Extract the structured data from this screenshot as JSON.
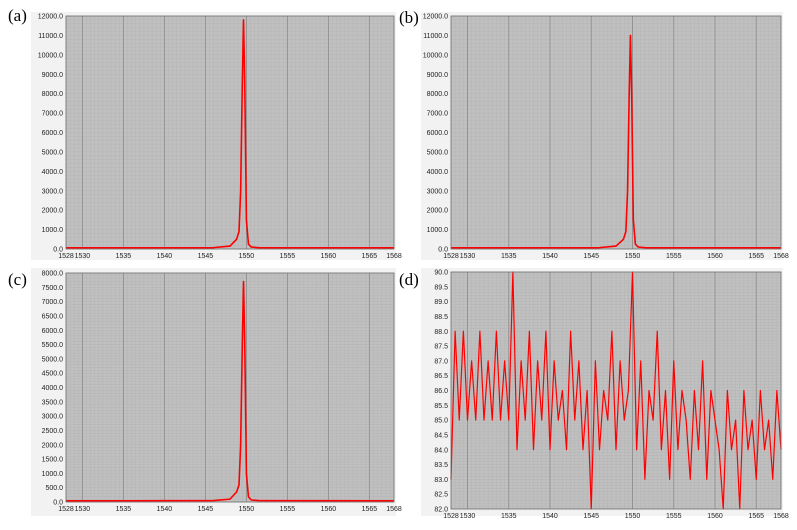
{
  "panels": [
    {
      "label": "(a)"
    },
    {
      "label": "(b)"
    },
    {
      "label": "(c)"
    },
    {
      "label": "(d)"
    }
  ],
  "colors": {
    "plot_background": "#c0c0c0",
    "major_grid": "#8f8f8f",
    "minor_grid": "#b3b3b3",
    "trace": "#ff0000",
    "frame_background": "#f2f2f2"
  },
  "chart_data": [
    {
      "type": "line",
      "title": "",
      "xlabel": "",
      "ylabel": "",
      "xlim": [
        1528,
        1568
      ],
      "ylim": [
        0,
        12000
      ],
      "x_ticks": [
        1528,
        1530,
        1535,
        1540,
        1545,
        1550,
        1555,
        1560,
        1565,
        1568
      ],
      "y_ticks": [
        "0.0",
        "1000.0",
        "2000.0",
        "3000.0",
        "4000.0",
        "5000.0",
        "6000.0",
        "7000.0",
        "8000.0",
        "9000.0",
        "10000.0",
        "11000.0",
        "12000.0"
      ],
      "grid": true,
      "series": [
        {
          "x": [
            1528,
            1546,
            1548,
            1548.8,
            1549.1,
            1549.3,
            1549.5,
            1549.65,
            1549.8,
            1550.0,
            1550.25,
            1550.6,
            1551.5,
            1568
          ],
          "y": [
            60,
            70,
            150,
            500,
            900,
            3000,
            8500,
            11800,
            8500,
            1500,
            250,
            100,
            70,
            60
          ]
        }
      ]
    },
    {
      "type": "line",
      "title": "",
      "xlabel": "",
      "ylabel": "",
      "xlim": [
        1528,
        1568
      ],
      "ylim": [
        0,
        12000
      ],
      "x_ticks": [
        1528,
        1530,
        1535,
        1540,
        1545,
        1550,
        1555,
        1560,
        1565,
        1568
      ],
      "y_ticks": [
        "0.0",
        "1000.0",
        "2000.0",
        "3000.0",
        "4000.0",
        "5000.0",
        "6000.0",
        "7000.0",
        "8000.0",
        "9000.0",
        "10000.0",
        "11000.0",
        "12000.0"
      ],
      "grid": true,
      "series": [
        {
          "x": [
            1528,
            1546,
            1548,
            1548.9,
            1549.2,
            1549.4,
            1549.6,
            1549.75,
            1549.9,
            1550.1,
            1550.35,
            1550.7,
            1551.5,
            1568
          ],
          "y": [
            60,
            70,
            150,
            500,
            900,
            3000,
            8000,
            11000,
            8000,
            1500,
            250,
            100,
            70,
            60
          ]
        }
      ]
    },
    {
      "type": "line",
      "title": "",
      "xlabel": "",
      "ylabel": "",
      "xlim": [
        1528,
        1568
      ],
      "ylim": [
        0,
        8000
      ],
      "x_ticks": [
        1528,
        1530,
        1535,
        1540,
        1545,
        1550,
        1555,
        1560,
        1565,
        1568
      ],
      "y_ticks": [
        "0.0",
        "500.0",
        "1000.0",
        "1500.0",
        "2000.0",
        "2500.0",
        "3000.0",
        "3500.0",
        "4000.0",
        "4500.0",
        "5000.0",
        "5500.0",
        "6000.0",
        "6500.0",
        "7000.0",
        "7500.0",
        "8000.0"
      ],
      "grid": true,
      "series": [
        {
          "x": [
            1528,
            1546,
            1548,
            1548.8,
            1549.1,
            1549.3,
            1549.5,
            1549.65,
            1549.8,
            1550.0,
            1550.25,
            1550.6,
            1551.5,
            1568
          ],
          "y": [
            40,
            50,
            100,
            350,
            600,
            2000,
            5500,
            7700,
            5500,
            1000,
            180,
            70,
            50,
            40
          ]
        }
      ]
    },
    {
      "type": "line",
      "title": "",
      "xlabel": "",
      "ylabel": "",
      "xlim": [
        1528,
        1568
      ],
      "ylim": [
        82.0,
        90.0
      ],
      "x_ticks": [
        1528,
        1530,
        1535,
        1540,
        1545,
        1550,
        1555,
        1560,
        1565,
        1568
      ],
      "y_ticks": [
        "82.0",
        "82.5",
        "83.0",
        "83.5",
        "84.0",
        "84.5",
        "85.0",
        "85.5",
        "86.0",
        "86.5",
        "87.0",
        "87.5",
        "88.0",
        "88.5",
        "89.0",
        "89.5",
        "90.0"
      ],
      "grid": true,
      "series": [
        {
          "x": [
            1528,
            1528.5,
            1529,
            1529.5,
            1530,
            1530.5,
            1531,
            1531.5,
            1532,
            1532.5,
            1533,
            1533.5,
            1534,
            1534.5,
            1535,
            1535.5,
            1536,
            1536.5,
            1537,
            1537.5,
            1538,
            1538.5,
            1539,
            1539.5,
            1540,
            1540.5,
            1541,
            1541.5,
            1542,
            1542.5,
            1543,
            1543.5,
            1544,
            1544.5,
            1545,
            1545.5,
            1546,
            1546.5,
            1547,
            1547.5,
            1548,
            1548.5,
            1549,
            1549.5,
            1550,
            1550.5,
            1551,
            1551.5,
            1552,
            1552.5,
            1553,
            1553.5,
            1554,
            1554.5,
            1555,
            1555.5,
            1556,
            1556.5,
            1557,
            1557.5,
            1558,
            1558.5,
            1559,
            1559.5,
            1560,
            1560.5,
            1561,
            1561.5,
            1562,
            1562.5,
            1563,
            1563.5,
            1564,
            1564.5,
            1565,
            1565.5,
            1566,
            1566.5,
            1567,
            1567.5,
            1568
          ],
          "y": [
            83.0,
            88.0,
            85.0,
            88.0,
            85.0,
            87.0,
            85.0,
            88.0,
            85.0,
            87.0,
            85.0,
            88.0,
            85.0,
            87.0,
            85.0,
            90.0,
            84.0,
            87.0,
            85.0,
            88.0,
            84.0,
            87.0,
            85.0,
            88.0,
            84.0,
            87.0,
            85.0,
            86.0,
            84.0,
            88.0,
            85.0,
            87.0,
            84.0,
            86.0,
            82.0,
            87.0,
            84.0,
            86.0,
            85.0,
            88.0,
            84.0,
            87.0,
            85.0,
            86.0,
            90.0,
            84.0,
            87.0,
            83.0,
            86.0,
            85.0,
            88.0,
            84.0,
            86.0,
            83.0,
            87.0,
            84.0,
            86.0,
            85.0,
            83.0,
            86.0,
            84.0,
            87.0,
            83.0,
            86.0,
            85.0,
            84.0,
            82.0,
            86.0,
            84.0,
            85.0,
            82.0,
            86.0,
            84.0,
            85.0,
            83.0,
            86.0,
            84.0,
            85.0,
            83.0,
            86.0,
            84.0
          ]
        }
      ]
    }
  ]
}
